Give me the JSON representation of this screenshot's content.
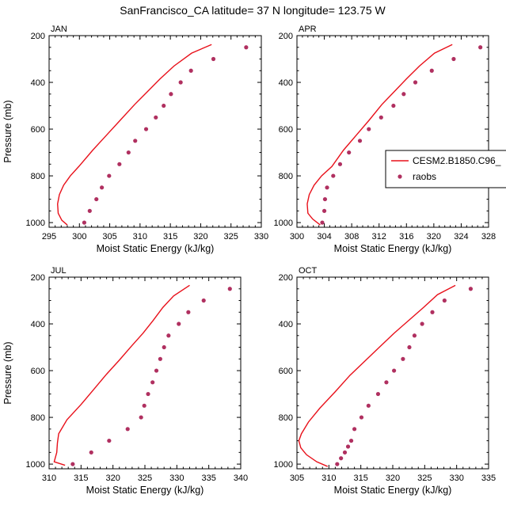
{
  "figure": {
    "title": "SanFrancisco_CA  latitude= 37 N longitude= 123.75 W"
  },
  "legend": {
    "entries": [
      {
        "label": "CESM2.B1850.C96_",
        "kind": "line",
        "color": "#e8101a"
      },
      {
        "label": "raobs",
        "kind": "marker",
        "color": "#b03060"
      }
    ]
  },
  "colors": {
    "model_line": "#e8101a",
    "raobs_marker": "#b03060"
  },
  "chart_data": [
    {
      "type": "line",
      "panel": "JAN",
      "xlabel": "Moist Static Energy (kJ/kg)",
      "ylabel": "Pressure (mb)",
      "xlim": [
        295,
        330
      ],
      "ylim": [
        1020,
        200
      ],
      "xticks": [
        295,
        300,
        305,
        310,
        315,
        320,
        325,
        330
      ],
      "yticks": [
        200,
        400,
        600,
        800,
        1000
      ],
      "series": [
        {
          "name": "CESM2.B1850.C96_",
          "x": [
            321.8,
            318.5,
            315.6,
            313.3,
            311.2,
            309.1,
            306.8,
            304.5,
            302.2,
            299.9,
            298.5,
            297.4,
            296.7,
            296.4,
            296.5,
            297.1,
            298.0
          ],
          "y": [
            238,
            275,
            330,
            385,
            440,
            495,
            560,
            625,
            690,
            760,
            800,
            840,
            880,
            920,
            960,
            990,
            1010
          ]
        },
        {
          "name": "raobs",
          "x": [
            327.5,
            322.1,
            318.4,
            316.7,
            315.1,
            313.9,
            312.6,
            311.0,
            309.2,
            308.1,
            306.6,
            304.9,
            303.7,
            302.8,
            301.7,
            300.8
          ],
          "y": [
            250,
            300,
            350,
            400,
            450,
            500,
            550,
            600,
            650,
            700,
            750,
            800,
            850,
            900,
            950,
            1000
          ]
        }
      ]
    },
    {
      "type": "line",
      "panel": "APR",
      "xlabel": "Moist Static Energy (kJ/kg)",
      "ylabel": "",
      "xlim": [
        300,
        328
      ],
      "ylim": [
        1020,
        200
      ],
      "xticks": [
        300,
        304,
        308,
        312,
        316,
        320,
        324,
        328
      ],
      "yticks": [
        200,
        400,
        600,
        800,
        1000
      ],
      "series": [
        {
          "name": "CESM2.B1850.C96_",
          "x": [
            322.7,
            320.1,
            317.9,
            316.0,
            314.2,
            312.4,
            310.6,
            308.7,
            306.8,
            305.1,
            303.6,
            302.5,
            301.8,
            301.5,
            301.6,
            302.3,
            303.4
          ],
          "y": [
            238,
            275,
            330,
            385,
            440,
            495,
            560,
            625,
            690,
            760,
            800,
            840,
            880,
            920,
            960,
            985,
            1010
          ]
        },
        {
          "name": "raobs",
          "x": [
            326.8,
            322.9,
            319.7,
            317.3,
            315.6,
            314.1,
            312.3,
            310.5,
            309.2,
            307.6,
            306.3,
            305.3,
            304.4,
            304.1,
            304.0,
            303.7
          ],
          "y": [
            250,
            300,
            350,
            400,
            450,
            500,
            550,
            600,
            650,
            700,
            750,
            800,
            850,
            900,
            950,
            1000
          ]
        }
      ]
    },
    {
      "type": "line",
      "panel": "JUL",
      "xlabel": "Moist Static Energy (kJ/kg)",
      "ylabel": "Pressure (mb)",
      "xlim": [
        310,
        340
      ],
      "ylim": [
        1020,
        200
      ],
      "xticks": [
        310,
        315,
        320,
        325,
        330,
        335,
        340
      ],
      "yticks": [
        200,
        400,
        600,
        800,
        1000
      ],
      "series": [
        {
          "name": "CESM2.B1850.C96_",
          "x": [
            332.0,
            329.5,
            327.8,
            326.3,
            324.7,
            322.9,
            321.0,
            319.0,
            317.0,
            315.0,
            312.8,
            311.5,
            311.3,
            311.2,
            311.0,
            310.8,
            312.5
          ],
          "y": [
            235,
            280,
            330,
            385,
            440,
            495,
            555,
            615,
            680,
            745,
            810,
            870,
            910,
            950,
            970,
            990,
            1005
          ]
        },
        {
          "name": "raobs",
          "x": [
            338.3,
            334.2,
            331.8,
            330.3,
            328.7,
            328.0,
            327.4,
            326.8,
            326.2,
            325.5,
            324.9,
            324.4,
            322.3,
            319.4,
            316.6,
            313.7
          ],
          "y": [
            250,
            300,
            350,
            400,
            450,
            500,
            550,
            600,
            650,
            700,
            750,
            800,
            850,
            900,
            950,
            1000
          ]
        }
      ]
    },
    {
      "type": "line",
      "panel": "OCT",
      "xlabel": "Moist Static Energy (kJ/kg)",
      "ylabel": "",
      "xlim": [
        305,
        335
      ],
      "ylim": [
        1020,
        200
      ],
      "xticks": [
        305,
        310,
        315,
        320,
        325,
        330,
        335
      ],
      "yticks": [
        200,
        400,
        600,
        800,
        1000
      ],
      "series": [
        {
          "name": "CESM2.B1850.C96_",
          "x": [
            329.8,
            327.0,
            324.8,
            322.5,
            320.2,
            317.9,
            315.6,
            313.3,
            311.0,
            308.6,
            306.8,
            305.7,
            305.3,
            305.6,
            306.5,
            308.1,
            309.8
          ],
          "y": [
            235,
            275,
            330,
            385,
            440,
            500,
            560,
            620,
            690,
            760,
            820,
            870,
            900,
            930,
            960,
            990,
            1010
          ]
        },
        {
          "name": "raobs",
          "x": [
            332.2,
            328.1,
            326.2,
            324.6,
            323.4,
            322.6,
            321.6,
            320.2,
            319.0,
            317.7,
            316.2,
            315.1,
            314.0,
            313.5,
            313.0,
            312.5,
            311.9,
            311.3
          ],
          "y": [
            250,
            300,
            350,
            400,
            450,
            500,
            550,
            600,
            650,
            700,
            750,
            800,
            850,
            900,
            925,
            950,
            975,
            1000
          ]
        }
      ]
    }
  ]
}
